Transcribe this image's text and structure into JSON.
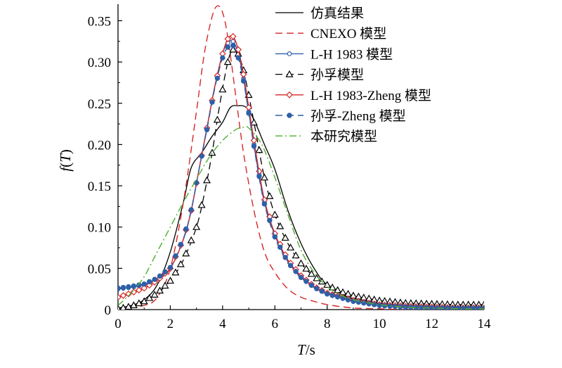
{
  "chart_data": {
    "type": "line",
    "xlabel_italic": "T",
    "xlabel_unit": "/s",
    "ylabel_prefix": "f",
    "ylabel_italic": "T",
    "xlim": [
      0,
      14
    ],
    "ylim": [
      0,
      0.37
    ],
    "xticks": [
      0,
      2,
      4,
      6,
      8,
      10,
      12,
      14
    ],
    "yticks": [
      0,
      0.05,
      0.1,
      0.15,
      0.2,
      0.25,
      0.3,
      0.35
    ],
    "ytick_labels": [
      "0",
      "0.05",
      "0.10",
      "0.15",
      "0.20",
      "0.25",
      "0.30",
      "0.35"
    ],
    "grid": false,
    "legend_position": "top-right",
    "series": [
      {
        "name": "仿真结果",
        "color": "#000000",
        "dash": "",
        "marker": "none",
        "width": 1.3,
        "x": [
          0,
          0.5,
          1,
          1.5,
          2,
          2.5,
          2.8,
          3.2,
          3.6,
          4,
          4.3,
          4.6,
          4.9,
          5.2,
          5.6,
          6,
          6.5,
          7,
          7.5,
          8,
          9,
          10,
          11,
          12,
          13,
          14
        ],
        "y": [
          0.002,
          0.005,
          0.012,
          0.03,
          0.07,
          0.13,
          0.172,
          0.19,
          0.21,
          0.227,
          0.245,
          0.247,
          0.245,
          0.23,
          0.2,
          0.17,
          0.12,
          0.08,
          0.05,
          0.03,
          0.012,
          0.006,
          0.004,
          0.003,
          0.003,
          0.003
        ]
      },
      {
        "name": "CNEXO 模型",
        "color": "#d62728",
        "dash": "10,6",
        "marker": "none",
        "width": 1.4,
        "x": [
          0,
          1,
          1.5,
          2,
          2.5,
          3,
          3.3,
          3.6,
          3.8,
          4,
          4.2,
          4.5,
          4.8,
          5.2,
          5.6,
          6,
          6.5,
          7,
          7.5,
          8,
          9,
          10,
          11,
          12,
          13,
          14
        ],
        "y": [
          0.001,
          0.005,
          0.015,
          0.05,
          0.13,
          0.24,
          0.31,
          0.355,
          0.368,
          0.36,
          0.33,
          0.26,
          0.19,
          0.12,
          0.07,
          0.045,
          0.025,
          0.015,
          0.01,
          0.006,
          0.002,
          0.001,
          0.0,
          0.0,
          0.0,
          0.0
        ]
      },
      {
        "name": "L-H 1983 模型",
        "color": "#2e5fa8",
        "dash": "",
        "marker": "circle",
        "width": 1.4,
        "x": [
          0,
          0.5,
          1,
          1.5,
          2,
          2.5,
          2.8,
          3.1,
          3.4,
          3.7,
          4,
          4.2,
          4.4,
          4.6,
          4.8,
          5,
          5.3,
          5.6,
          6,
          6.5,
          7,
          7.5,
          8,
          9,
          10,
          11,
          12,
          13,
          14
        ],
        "y": [
          0.025,
          0.027,
          0.03,
          0.037,
          0.05,
          0.085,
          0.12,
          0.17,
          0.22,
          0.27,
          0.31,
          0.323,
          0.325,
          0.31,
          0.28,
          0.24,
          0.18,
          0.13,
          0.09,
          0.058,
          0.04,
          0.028,
          0.02,
          0.011,
          0.006,
          0.004,
          0.003,
          0.002,
          0.002
        ]
      },
      {
        "name": "孙孚模型",
        "color": "#000000",
        "dash": "10,6",
        "marker": "triangle",
        "width": 1.3,
        "x": [
          0,
          0.5,
          1,
          1.5,
          2,
          2.5,
          3,
          3.3,
          3.6,
          3.9,
          4.2,
          4.4,
          4.6,
          4.8,
          5,
          5.3,
          5.6,
          6,
          6.5,
          7,
          7.5,
          8,
          8.5,
          9,
          10,
          11,
          12,
          13,
          14
        ],
        "y": [
          0.001,
          0.004,
          0.01,
          0.02,
          0.035,
          0.06,
          0.1,
          0.14,
          0.19,
          0.25,
          0.3,
          0.315,
          0.31,
          0.29,
          0.26,
          0.21,
          0.16,
          0.115,
          0.08,
          0.056,
          0.04,
          0.03,
          0.022,
          0.017,
          0.011,
          0.008,
          0.007,
          0.006,
          0.006
        ]
      },
      {
        "name": "L-H 1983-Zheng 模型",
        "color": "#d62728",
        "dash": "",
        "marker": "diamond",
        "width": 1.4,
        "x": [
          0,
          0.5,
          1,
          1.5,
          2,
          2.5,
          2.8,
          3.1,
          3.4,
          3.7,
          4,
          4.2,
          4.4,
          4.6,
          4.8,
          5,
          5.3,
          5.6,
          6,
          6.5,
          7,
          7.5,
          8,
          9,
          10,
          11,
          12,
          13,
          14
        ],
        "y": [
          0.015,
          0.02,
          0.026,
          0.035,
          0.05,
          0.085,
          0.12,
          0.17,
          0.22,
          0.27,
          0.31,
          0.328,
          0.331,
          0.315,
          0.285,
          0.245,
          0.185,
          0.133,
          0.092,
          0.06,
          0.041,
          0.028,
          0.02,
          0.011,
          0.006,
          0.004,
          0.003,
          0.002,
          0.002
        ]
      },
      {
        "name": "孙孚-Zheng 模型",
        "color": "#2e5fa8",
        "dash": "10,6",
        "marker": "dot",
        "width": 1.4,
        "x": [
          0,
          0.5,
          1,
          1.5,
          2,
          2.5,
          2.8,
          3.1,
          3.4,
          3.7,
          4,
          4.2,
          4.4,
          4.6,
          4.8,
          5,
          5.3,
          5.6,
          6,
          6.5,
          7,
          7.5,
          8,
          9,
          10,
          11,
          12,
          13,
          14
        ],
        "y": [
          0.026,
          0.028,
          0.031,
          0.038,
          0.051,
          0.086,
          0.121,
          0.17,
          0.218,
          0.268,
          0.305,
          0.318,
          0.32,
          0.305,
          0.277,
          0.238,
          0.178,
          0.128,
          0.088,
          0.057,
          0.039,
          0.027,
          0.019,
          0.01,
          0.005,
          0.003,
          0.002,
          0.0015,
          0.0015
        ]
      },
      {
        "name": "本研究模型",
        "color": "#4caf2c",
        "dash": "10,4,2,4",
        "marker": "none",
        "width": 1.4,
        "x": [
          0,
          0.5,
          1,
          1.5,
          2,
          2.5,
          3,
          3.5,
          4,
          4.5,
          4.8,
          5,
          5.5,
          6,
          6.5,
          7,
          7.5,
          8,
          8.5,
          9,
          10,
          11,
          12,
          13,
          14
        ],
        "y": [
          0.005,
          0.02,
          0.04,
          0.07,
          0.1,
          0.13,
          0.158,
          0.185,
          0.205,
          0.218,
          0.221,
          0.22,
          0.2,
          0.16,
          0.115,
          0.072,
          0.045,
          0.028,
          0.018,
          0.012,
          0.006,
          0.003,
          0.002,
          0.001,
          0.001
        ]
      }
    ]
  }
}
